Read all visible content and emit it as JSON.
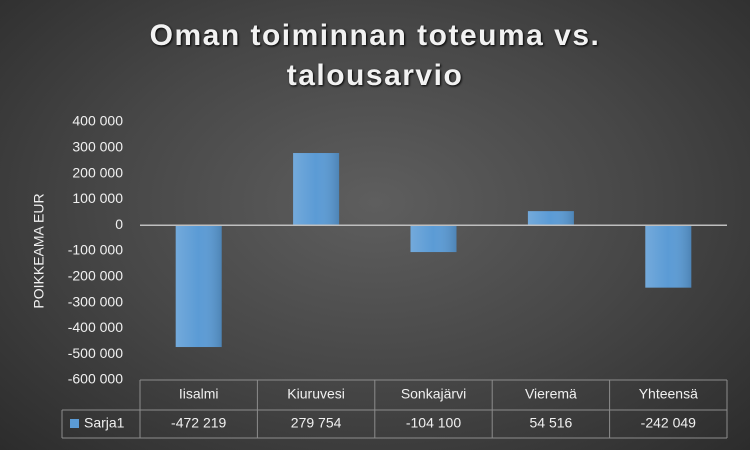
{
  "chart_data": {
    "type": "bar",
    "title": "Oman toiminnan toteuma vs. talousarvio",
    "y_label": "POIKKEAMA EUR",
    "categories": [
      "Iisalmi",
      "Kiuruvesi",
      "Sonkajärvi",
      "Vieremä",
      "Yhteensä"
    ],
    "series": [
      {
        "name": "Sarja1",
        "color": "#5b9bd5",
        "values": [
          -472219,
          279754,
          -104100,
          54516,
          -242049
        ],
        "value_labels": [
          "-472 219",
          "279 754",
          "-104 100",
          "54 516",
          "-242 049"
        ]
      }
    ],
    "ylim": [
      -600000,
      400000
    ],
    "yticks": [
      {
        "value": -600000,
        "label": "-600 000"
      },
      {
        "value": -500000,
        "label": "-500 000"
      },
      {
        "value": -400000,
        "label": "-400 000"
      },
      {
        "value": -300000,
        "label": "-300 000"
      },
      {
        "value": -200000,
        "label": "-200 000"
      },
      {
        "value": -100000,
        "label": "-100 000"
      },
      0,
      {
        "value": 100000,
        "label": "100 000"
      },
      {
        "value": 200000,
        "label": "200 000"
      },
      {
        "value": 300000,
        "label": "300 000"
      },
      {
        "value": 400000,
        "label": "400 000"
      }
    ],
    "grid": false,
    "data_table": true
  }
}
